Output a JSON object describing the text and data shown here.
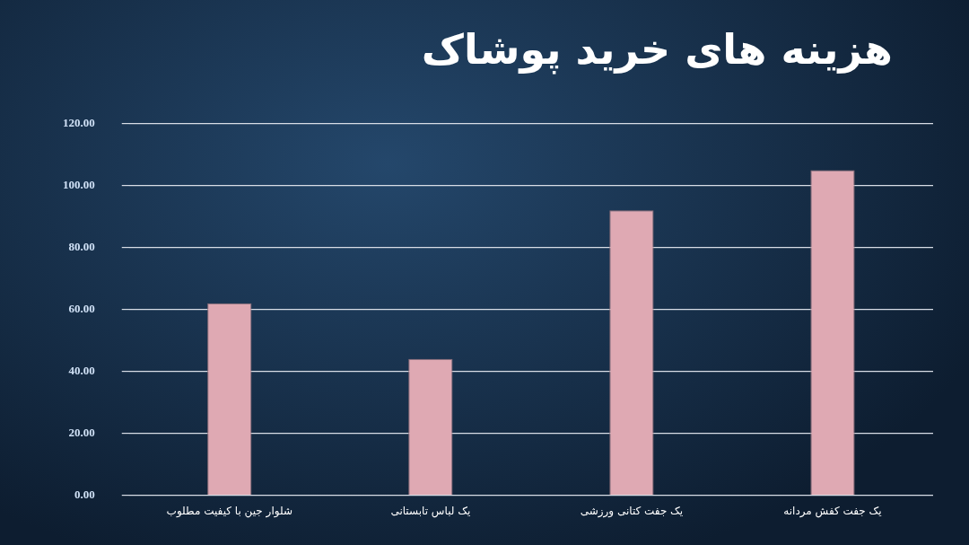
{
  "chart_data": {
    "type": "bar",
    "title": "هزینه های خرید پوشاک",
    "categories": [
      "شلوار جین با کیفیت مطلوب",
      "یک لباس تابستانی",
      "یک جفت کتانی ورزشی",
      "یک جفت کفش مردانه"
    ],
    "values": [
      62,
      44,
      92,
      105
    ],
    "color": "#dfa9b3",
    "ylim": [
      0,
      120
    ],
    "yticks": [
      {
        "value": 0,
        "label": "0.00"
      },
      {
        "value": 20,
        "label": "20.00"
      },
      {
        "value": 40,
        "label": "40.00"
      },
      {
        "value": 60,
        "label": "60.00"
      },
      {
        "value": 80,
        "label": "80.00"
      },
      {
        "value": 100,
        "label": "100.00"
      },
      {
        "value": 120,
        "label": "120.00"
      }
    ],
    "grid": "y",
    "legend": false
  }
}
